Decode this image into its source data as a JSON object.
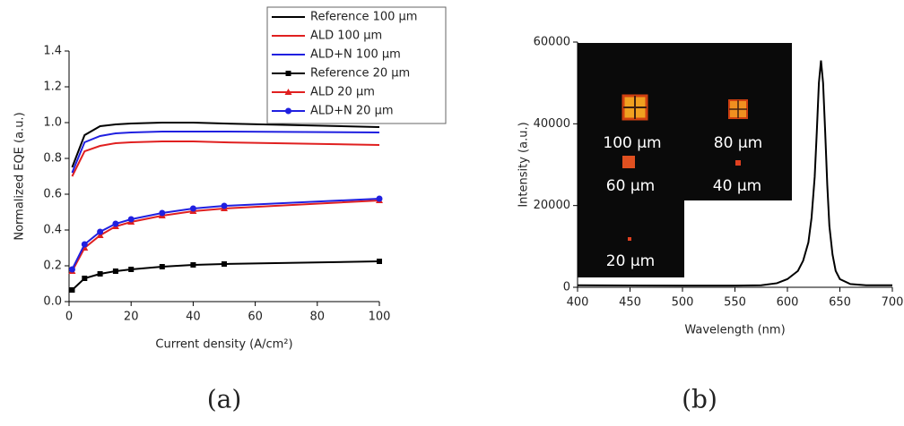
{
  "chart_data": [
    {
      "type": "line",
      "caption": "(a)",
      "x_label": "Current density (A/cm²)",
      "y_label": "Normalized EQE (a.u.)",
      "xlim": [
        0,
        100
      ],
      "xticks": [
        0,
        20,
        40,
        60,
        80,
        100
      ],
      "ylim": [
        0,
        1.4
      ],
      "yticks": [
        {
          "value": 0,
          "label": "0.0"
        },
        0.2,
        0.4,
        0.6,
        0.8,
        {
          "value": 1,
          "label": "1.0"
        },
        1.2,
        1.4
      ],
      "x": [
        1,
        5,
        10,
        15,
        20,
        30,
        40,
        50,
        100
      ],
      "series": [
        {
          "name": "Reference 100 µm",
          "color": "#000000",
          "values": [
            0.75,
            0.93,
            0.98,
            0.99,
            0.995,
            1.0,
            1.0,
            0.995,
            0.975
          ]
        },
        {
          "name": "ALD 100 µm",
          "color": "#e02020",
          "values": [
            0.7,
            0.84,
            0.87,
            0.885,
            0.89,
            0.895,
            0.895,
            0.89,
            0.875
          ]
        },
        {
          "name": "ALD+N 100 µm",
          "color": "#2020e0",
          "values": [
            0.72,
            0.89,
            0.925,
            0.94,
            0.945,
            0.95,
            0.95,
            0.95,
            0.945
          ]
        },
        {
          "name": "Reference 20 µm",
          "color": "#000000",
          "marker": "square",
          "values": [
            0.065,
            0.13,
            0.155,
            0.17,
            0.18,
            0.195,
            0.205,
            0.21,
            0.225
          ]
        },
        {
          "name": "ALD 20 µm",
          "color": "#e02020",
          "marker": "triangle",
          "values": [
            0.17,
            0.3,
            0.37,
            0.42,
            0.445,
            0.48,
            0.505,
            0.52,
            0.565
          ]
        },
        {
          "name": "ALD+N 20 µm",
          "color": "#2020e0",
          "marker": "circle",
          "values": [
            0.18,
            0.32,
            0.39,
            0.435,
            0.46,
            0.495,
            0.52,
            0.535,
            0.575
          ]
        }
      ]
    },
    {
      "type": "line",
      "caption": "(b)",
      "x_label": "Wavelength (nm)",
      "y_label": "Intensity (a.u.)",
      "xlim": [
        400,
        700
      ],
      "xticks": [
        400,
        450,
        500,
        550,
        600,
        650,
        700
      ],
      "ylim": [
        0,
        60000
      ],
      "yticks": [
        0,
        20000,
        40000,
        60000
      ],
      "x": [
        400,
        450,
        500,
        550,
        575,
        590,
        600,
        610,
        615,
        620,
        623,
        626,
        628,
        630,
        632,
        634,
        636,
        638,
        640,
        643,
        646,
        650,
        660,
        675,
        700
      ],
      "values": [
        500,
        450,
        400,
        400,
        500,
        1000,
        2000,
        4000,
        6500,
        11000,
        17000,
        27000,
        38000,
        50000,
        55500,
        50000,
        38000,
        25000,
        15000,
        8000,
        4000,
        2000,
        800,
        500,
        500
      ],
      "color": "#000000",
      "annotations": [
        "100 µm",
        "80 µm",
        "60 µm",
        "40 µm",
        "20 µm"
      ]
    }
  ]
}
